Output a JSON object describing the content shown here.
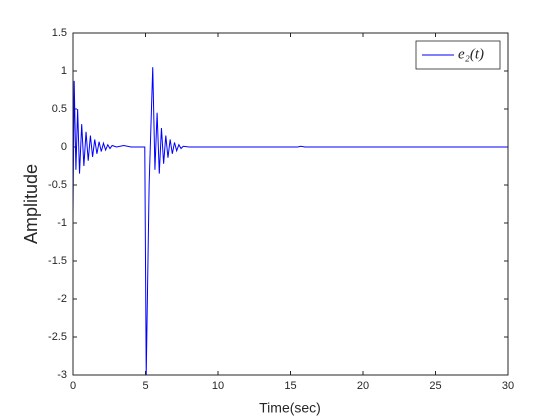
{
  "chart_data": {
    "type": "line",
    "xlabel": "Time(sec)",
    "ylabel": "Amplitude",
    "xlim": [
      0,
      30
    ],
    "xticks": [
      0,
      5,
      10,
      15,
      20,
      25,
      30
    ],
    "ylim": [
      -3,
      1.5
    ],
    "yticks": [
      -3,
      -2.5,
      -2,
      -1.5,
      -1,
      -0.5,
      0,
      0.5,
      1,
      1.5
    ],
    "grid": false,
    "legend": "upper right",
    "series": [
      {
        "name": "e₂(t)",
        "color": "#0000ff",
        "x": [
          0,
          0.08,
          0.2,
          0.32,
          0.45,
          0.6,
          0.75,
          0.9,
          1.05,
          1.2,
          1.35,
          1.5,
          1.65,
          1.8,
          1.95,
          2.1,
          2.25,
          2.4,
          2.55,
          2.7,
          3,
          3.5,
          4,
          4.95,
          5.05,
          5.25,
          5.5,
          5.65,
          5.8,
          5.95,
          6.1,
          6.25,
          6.4,
          6.55,
          6.7,
          6.85,
          7,
          7.15,
          7.3,
          7.45,
          7.6,
          8,
          15.5,
          15.7,
          16,
          30
        ],
        "values": [
          -0.9,
          0.87,
          -0.3,
          0.5,
          -0.35,
          0.3,
          -0.25,
          0.2,
          -0.18,
          0.15,
          -0.13,
          0.1,
          -0.09,
          0.07,
          -0.06,
          0.05,
          -0.04,
          0.03,
          -0.02,
          0.02,
          0,
          0.02,
          0,
          0,
          -3,
          -0.5,
          1.05,
          -0.3,
          0.45,
          -0.35,
          0.25,
          -0.22,
          0.15,
          -0.14,
          0.1,
          -0.09,
          0.06,
          -0.05,
          0.03,
          -0.02,
          0.01,
          0,
          0,
          0.01,
          0,
          0
        ]
      }
    ]
  }
}
